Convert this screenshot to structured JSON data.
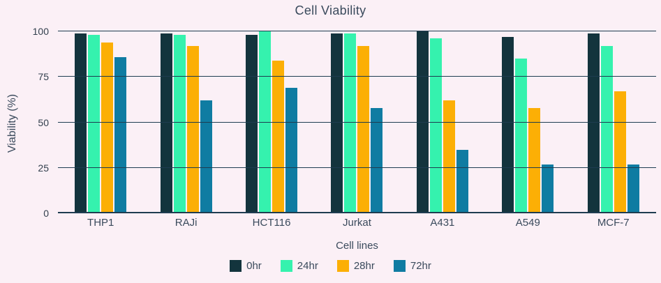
{
  "title": "Cell Viability",
  "colors": {
    "background": "#FBF0F6",
    "grid": "#1E3C50",
    "text": "#3A4A5C"
  },
  "chart_data": {
    "type": "bar",
    "title": "Cell Viability",
    "xlabel": "Cell lines",
    "ylabel": "Viability (%)",
    "ylim": [
      0,
      100
    ],
    "yticks": [
      0,
      25,
      50,
      75,
      100
    ],
    "grid": true,
    "legend_position": "bottom",
    "categories": [
      "THP1",
      "RAJi",
      "HCT116",
      "Jurkat",
      "A431",
      "A549",
      "MCF-7"
    ],
    "series": [
      {
        "name": "0hr",
        "color": "#13343D",
        "values": [
          99,
          99,
          98,
          99,
          100,
          97,
          99
        ]
      },
      {
        "name": "24hr",
        "color": "#35F2AE",
        "values": [
          98,
          98,
          100,
          99,
          96,
          85,
          92
        ]
      },
      {
        "name": "28hr",
        "color": "#FCAF05",
        "values": [
          94,
          92,
          84,
          92,
          62,
          58,
          67
        ]
      },
      {
        "name": "72hr",
        "color": "#0F7CA2",
        "values": [
          86,
          62,
          69,
          58,
          35,
          27,
          27
        ]
      }
    ]
  }
}
